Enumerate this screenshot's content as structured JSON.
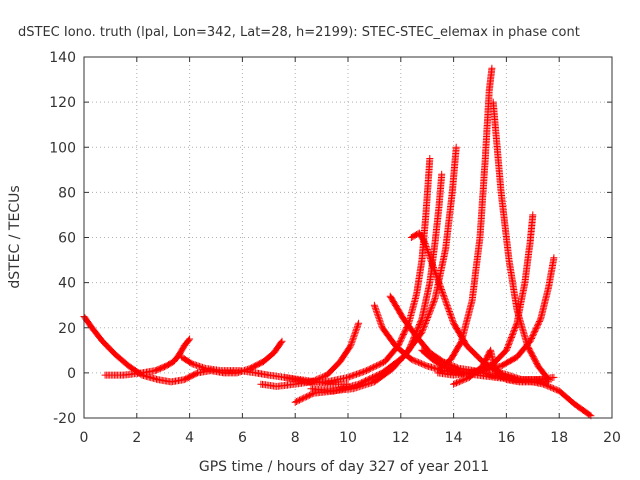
{
  "chart_data": {
    "type": "scatter",
    "title": "dSTEC Iono. truth (lpal, Lon=342, Lat=28, h=2199): STEC-STEC_elemax in phase cont",
    "xlabel": "GPS time / hours of day 327 of year 2011",
    "ylabel": "dSTEC  / TECUs",
    "xlim": [
      0,
      20
    ],
    "ylim": [
      -20,
      140
    ],
    "xticks": [
      "0",
      "2",
      "4",
      "6",
      "8",
      "10",
      "12",
      "14",
      "16",
      "18",
      "20"
    ],
    "yticks": [
      "-20",
      "0",
      "20",
      "40",
      "60",
      "80",
      "100",
      "120",
      "140"
    ],
    "grid": true,
    "marker": "plus",
    "color": "#ff0000",
    "series": [
      {
        "x": [
          0.0,
          0.3,
          0.7,
          1.2,
          1.7,
          2.2,
          2.8,
          3.3,
          3.8,
          4.3,
          4.8,
          5.3,
          5.8,
          6.3,
          6.8,
          7.2,
          7.5
        ],
        "y": [
          25,
          20,
          14,
          8,
          3,
          -1,
          -3,
          -4,
          -3,
          0,
          1,
          0,
          0,
          2,
          5,
          9,
          14
        ]
      },
      {
        "x": [
          0.8,
          1.5,
          2.2,
          2.7,
          3.1,
          3.4,
          3.6,
          3.8,
          4.0
        ],
        "y": [
          -1,
          -1,
          0,
          1,
          3,
          5,
          8,
          12,
          15
        ]
      },
      {
        "x": [
          3.7,
          4.1,
          4.6,
          5.2,
          5.9,
          6.5,
          7.0,
          7.6,
          8.2,
          8.8,
          9.4,
          10.0
        ],
        "y": [
          7,
          4,
          2,
          1,
          1,
          0,
          -1,
          -2,
          -3,
          -4,
          -5,
          -5
        ]
      },
      {
        "x": [
          6.7,
          7.3,
          8.0,
          8.6,
          9.2,
          9.7,
          10.1,
          10.4
        ],
        "y": [
          -5,
          -6,
          -5,
          -4,
          -1,
          5,
          12,
          22
        ]
      },
      {
        "x": [
          7.6,
          8.4,
          9.2,
          10.0,
          10.7,
          11.4,
          11.9,
          12.3,
          12.6,
          12.8,
          12.95,
          13.1
        ],
        "y": [
          -2,
          -4,
          -4,
          -2,
          1,
          5,
          12,
          22,
          35,
          50,
          70,
          95
        ]
      },
      {
        "x": [
          8.6,
          9.4,
          10.2,
          11.0,
          11.7,
          12.3,
          12.8,
          13.1,
          13.3,
          13.45,
          13.55
        ],
        "y": [
          -7,
          -8,
          -7,
          -4,
          2,
          10,
          24,
          40,
          58,
          74,
          88
        ]
      },
      {
        "x": [
          8.0,
          8.7,
          9.5,
          10.4,
          11.3,
          12.1,
          12.8,
          13.3,
          13.7,
          13.95,
          14.1
        ],
        "y": [
          -13,
          -9,
          -8,
          -5,
          0,
          7,
          18,
          33,
          55,
          80,
          100
        ]
      },
      {
        "x": [
          11.0,
          11.3,
          11.8,
          12.4,
          13.0,
          13.6,
          14.2,
          14.9,
          15.6,
          16.3,
          17.0,
          17.6
        ],
        "y": [
          30,
          20,
          12,
          6,
          3,
          1,
          0,
          -1,
          -2,
          -3,
          -3,
          -3
        ]
      },
      {
        "x": [
          11.6,
          12.1,
          12.6,
          13.1,
          13.6,
          14.2,
          14.8,
          15.4,
          16.0,
          16.6,
          17.2,
          17.8
        ],
        "y": [
          34,
          24,
          16,
          9,
          5,
          2,
          1,
          -1,
          -2,
          -3,
          -3,
          -2
        ]
      },
      {
        "x": [
          12.4,
          12.7,
          12.9,
          13.2,
          13.6,
          14.0,
          14.5,
          15.1,
          15.8,
          16.6,
          17.4,
          18.0,
          18.6,
          19.2
        ],
        "y": [
          60,
          62,
          58,
          48,
          35,
          22,
          12,
          5,
          0,
          -3,
          -5,
          -8,
          -14,
          -19
        ]
      },
      {
        "x": [
          12.8,
          13.2,
          13.6,
          14.0,
          14.5,
          15.0,
          15.5,
          16.0,
          16.4,
          16.7,
          16.9,
          17.0
        ],
        "y": [
          10,
          6,
          3,
          1,
          0,
          1,
          4,
          10,
          22,
          40,
          58,
          70
        ]
      },
      {
        "x": [
          13.4,
          14.0,
          14.6,
          15.2,
          15.8,
          16.4,
          16.9,
          17.3,
          17.6,
          17.8
        ],
        "y": [
          0,
          -1,
          0,
          1,
          3,
          7,
          14,
          24,
          38,
          51
        ]
      },
      {
        "x": [
          13.5,
          13.9,
          14.3,
          14.7,
          15.0,
          15.2,
          15.35,
          15.45
        ],
        "y": [
          2,
          6,
          14,
          32,
          60,
          95,
          125,
          135
        ]
      },
      {
        "x": [
          15.5,
          15.8,
          16.1,
          16.4,
          16.8,
          17.2,
          17.6
        ],
        "y": [
          120,
          80,
          50,
          28,
          12,
          3,
          -3
        ]
      },
      {
        "x": [
          14.0,
          14.6,
          15.1,
          15.4,
          15.6,
          16.0,
          16.5,
          17.0,
          17.6
        ],
        "y": [
          -5,
          -2,
          3,
          10,
          0,
          -3,
          -4,
          -4,
          -4
        ]
      }
    ]
  }
}
